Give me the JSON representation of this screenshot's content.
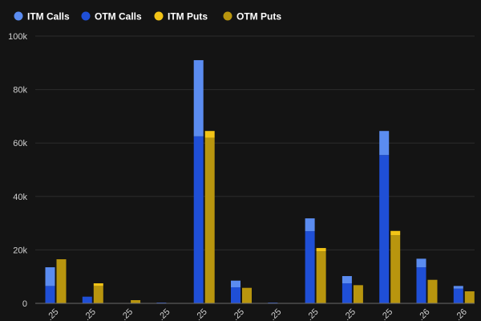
{
  "chart_data": {
    "type": "bar",
    "stacked_groups": true,
    "grid": true,
    "legend_position": "top-left",
    "ylim": [
      0,
      100000
    ],
    "yticks": [
      "0",
      "20k",
      "40k",
      "60k",
      "80k",
      "100k"
    ],
    "ytick_values": [
      0,
      20000,
      40000,
      60000,
      80000,
      100000
    ],
    "categories": [
      ".25",
      ".25",
      ".25",
      ".25",
      ".25",
      ".25",
      ".25",
      ".25",
      ".25",
      ".25",
      ".26",
      ".26"
    ],
    "groups": [
      {
        "name": "Calls",
        "series": [
          {
            "name": "OTM Calls",
            "color": "#1f4fd6",
            "values": [
              6500,
              2500,
              0,
              300,
              62500,
              6000,
              300,
              27000,
              7500,
              55500,
              13500,
              5500
            ]
          },
          {
            "name": "ITM Calls",
            "color": "#5b8cf0",
            "values": [
              7000,
              0,
              0,
              0,
              28500,
              2500,
              0,
              4800,
              2700,
              9000,
              3200,
              1000
            ]
          }
        ]
      },
      {
        "name": "Puts",
        "series": [
          {
            "name": "OTM Puts",
            "color": "#b8950e",
            "values": [
              16500,
              6500,
              1200,
              0,
              62000,
              5800,
              0,
              19500,
              6800,
              25500,
              8800,
              4500
            ]
          },
          {
            "name": "ITM Puts",
            "color": "#f2c417",
            "values": [
              0,
              1000,
              0,
              0,
              2500,
              0,
              0,
              1200,
              0,
              1600,
              0,
              0
            ]
          }
        ]
      }
    ],
    "legend": [
      {
        "name": "ITM Calls",
        "color": "#5b8cf0"
      },
      {
        "name": "OTM Calls",
        "color": "#1f4fd6"
      },
      {
        "name": "ITM Puts",
        "color": "#f2c417"
      },
      {
        "name": "OTM Puts",
        "color": "#b8950e"
      }
    ]
  }
}
